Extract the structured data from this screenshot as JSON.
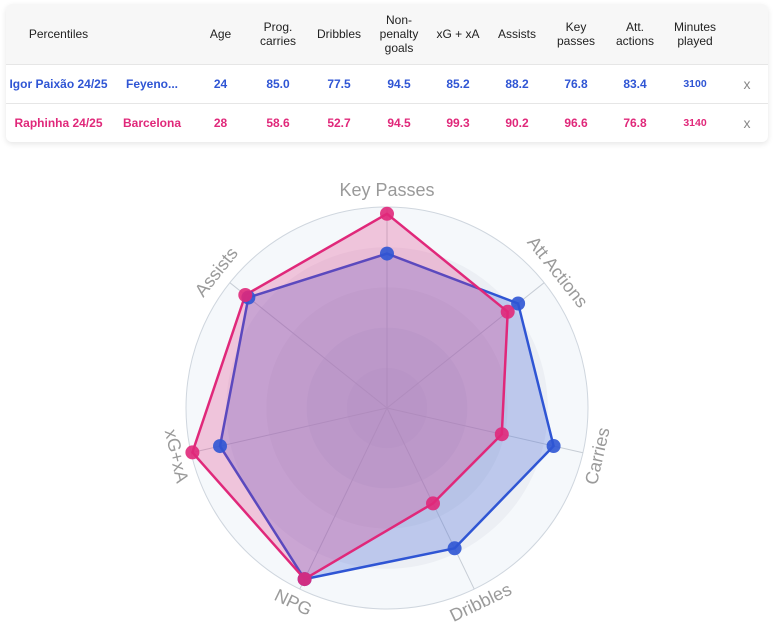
{
  "table": {
    "headers": [
      "Percentiles",
      "",
      "Age",
      "Prog. carries",
      "Dribbles",
      "Non-penalty goals",
      "xG + xA",
      "Assists",
      "Key passes",
      "Att. actions",
      "Minutes played",
      ""
    ],
    "rows": [
      {
        "player": "Igor Paixão 24/25",
        "team": "Feyeno...",
        "age": "24",
        "prog_carries": "85.0",
        "dribbles": "77.5",
        "npg": "94.5",
        "xgxa": "85.2",
        "assists": "88.2",
        "key_passes": "76.8",
        "att_actions": "83.4",
        "minutes": "3100",
        "remove": "x",
        "color": "#2f55d4"
      },
      {
        "player": "Raphinha 24/25",
        "team": "Barcelona",
        "age": "28",
        "prog_carries": "58.6",
        "dribbles": "52.7",
        "npg": "94.5",
        "xgxa": "99.3",
        "assists": "90.2",
        "key_passes": "96.6",
        "att_actions": "76.8",
        "minutes": "3140",
        "remove": "x",
        "color": "#e0287a"
      }
    ]
  },
  "chart_data": {
    "type": "radar",
    "axes": [
      "Key Passes",
      "Att Actions",
      "Carries",
      "Dribbles",
      "NPG",
      "xG+xA",
      "Assists"
    ],
    "range": [
      0,
      100
    ],
    "series": [
      {
        "name": "Igor Paixão 24/25",
        "color": "#2f55d4",
        "values": [
          76.8,
          83.4,
          85.0,
          77.5,
          94.5,
          85.2,
          88.2
        ]
      },
      {
        "name": "Raphinha 24/25",
        "color": "#e0287a",
        "values": [
          96.6,
          76.8,
          58.6,
          52.7,
          94.5,
          99.3,
          90.2
        ]
      }
    ]
  }
}
